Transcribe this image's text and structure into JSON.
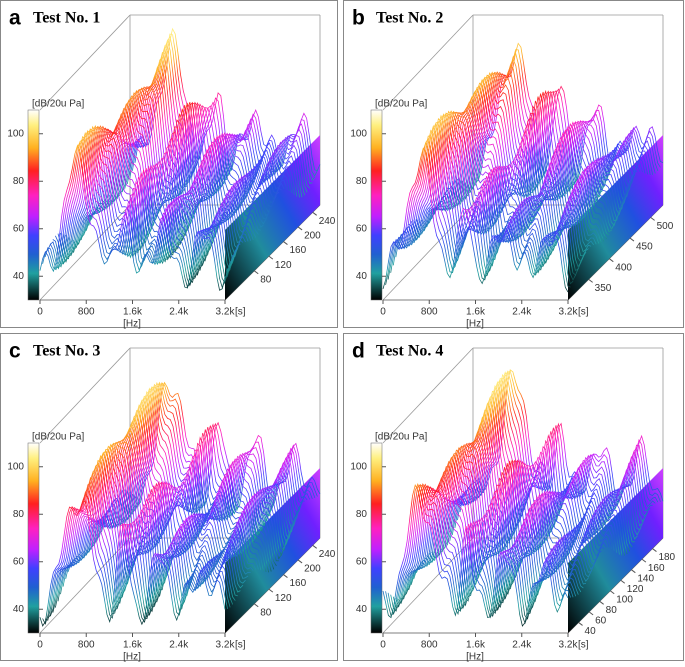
{
  "chart_data": [
    {
      "type": "waterfall",
      "panel_label": "a",
      "title": "Test No. 1",
      "y_label": "[dB/20u Pa]",
      "x_label": "[Hz]",
      "z_label": "[s]",
      "xlim": [
        0,
        3200
      ],
      "xticks": [
        0,
        800,
        {
          "value": 1600,
          "label": "1.6k"
        },
        {
          "value": 2400,
          "label": "2.4k"
        },
        {
          "value": 3200,
          "label": "3.2k"
        }
      ],
      "ylim": [
        30,
        110
      ],
      "yticks": [
        40,
        60,
        80,
        100
      ],
      "zlim": [
        0,
        260
      ],
      "zticks": [
        80,
        120,
        160,
        200,
        240
      ]
    },
    {
      "type": "waterfall",
      "panel_label": "b",
      "title": "Test No. 2",
      "y_label": "[dB/20u Pa]",
      "x_label": "[Hz]",
      "z_label": "[s]",
      "xlim": [
        0,
        3200
      ],
      "xticks": [
        0,
        800,
        {
          "value": 1600,
          "label": "1.6k"
        },
        {
          "value": 2400,
          "label": "2.4k"
        },
        {
          "value": 3200,
          "label": "3.2k"
        }
      ],
      "ylim": [
        30,
        110
      ],
      "yticks": [
        40,
        60,
        80,
        100
      ],
      "zlim": [
        300,
        530
      ],
      "zticks": [
        350,
        400,
        450,
        500
      ]
    },
    {
      "type": "waterfall",
      "panel_label": "c",
      "title": "Test No. 3",
      "y_label": "[dB/20u Pa]",
      "x_label": "[Hz]",
      "z_label": "[s]",
      "xlim": [
        0,
        3200
      ],
      "xticks": [
        0,
        800,
        {
          "value": 1600,
          "label": "1.6k"
        },
        {
          "value": 2400,
          "label": "2.4k"
        },
        {
          "value": 3200,
          "label": "3.2k"
        }
      ],
      "ylim": [
        30,
        110
      ],
      "yticks": [
        40,
        60,
        80,
        100
      ],
      "zlim": [
        0,
        260
      ],
      "zticks": [
        80,
        120,
        160,
        200,
        240
      ]
    },
    {
      "type": "waterfall",
      "panel_label": "d",
      "title": "Test No. 4",
      "y_label": "[dB/20u Pa]",
      "x_label": "[Hz]",
      "z_label": "[s]",
      "xlim": [
        0,
        3200
      ],
      "xticks": [
        0,
        800,
        {
          "value": 1600,
          "label": "1.6k"
        },
        {
          "value": 2400,
          "label": "2.4k"
        },
        {
          "value": 3200,
          "label": "3.2k"
        }
      ],
      "ylim": [
        30,
        110
      ],
      "yticks": [
        40,
        60,
        80,
        100
      ],
      "zlim": [
        20,
        200
      ],
      "zticks": [
        40,
        60,
        80,
        100,
        120,
        140,
        160,
        180
      ]
    }
  ]
}
